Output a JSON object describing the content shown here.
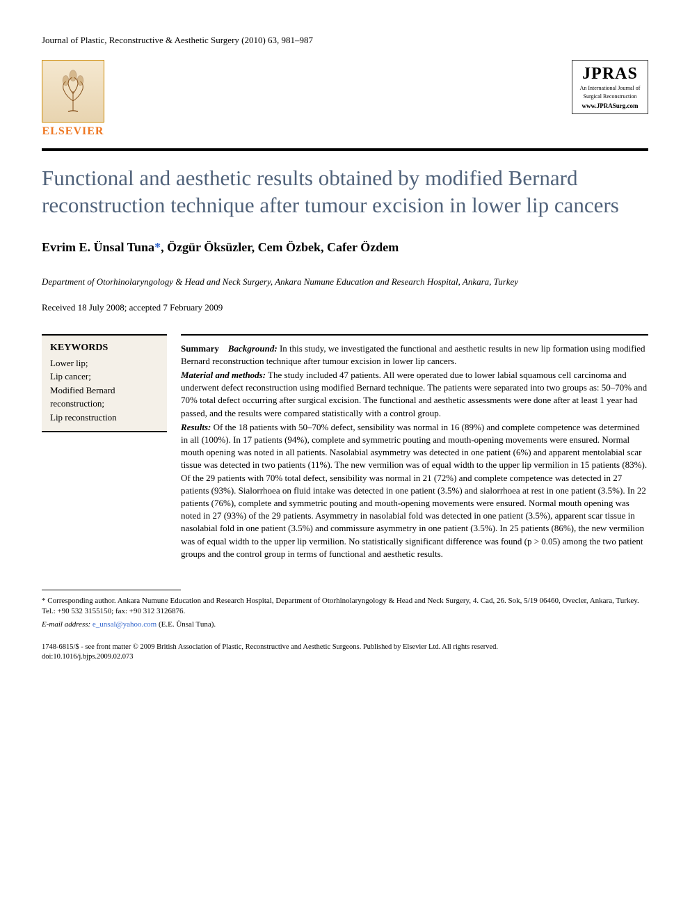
{
  "journal_header": "Journal of Plastic, Reconstructive & Aesthetic Surgery (2010) 63, 981–987",
  "publisher": {
    "name": "ELSEVIER",
    "tree_color": "#cc8800"
  },
  "journal_logo": {
    "acronym": "JPRAS",
    "subtitle_line1": "An International Journal of",
    "subtitle_line2": "Surgical Reconstruction",
    "url": "www.JPRASurg.com"
  },
  "title": "Functional and aesthetic results obtained by modified Bernard reconstruction technique after tumour excision in lower lip cancers",
  "authors": "Evrim E. Ünsal Tuna*, Özgür Öksüzler, Cem Özbek, Cafer Özdem",
  "affiliation": "Department of Otorhinolaryngology & Head and Neck Surgery, Ankara Numune Education and Research Hospital, Ankara, Turkey",
  "dates": "Received 18 July 2008; accepted 7 February 2009",
  "keywords": {
    "heading": "KEYWORDS",
    "items": "Lower lip;\nLip cancer;\nModified Bernard reconstruction;\nLip reconstruction"
  },
  "summary": {
    "label": "Summary",
    "background_label": "Background:",
    "background_text": " In this study, we investigated the functional and aesthetic results in new lip formation using modified Bernard reconstruction technique after tumour excision in lower lip cancers.",
    "methods_label": "Material and methods:",
    "methods_text": " The study included 47 patients. All were operated due to lower labial squamous cell carcinoma and underwent defect reconstruction using modified Bernard technique. The patients were separated into two groups as: 50–70% and 70% total defect occurring after surgical excision. The functional and aesthetic assessments were done after at least 1 year had passed, and the results were compared statistically with a control group.",
    "results_label": "Results:",
    "results_text": " Of the 18 patients with 50–70% defect, sensibility was normal in 16 (89%) and complete competence was determined in all (100%). In 17 patients (94%), complete and symmetric pouting and mouth-opening movements were ensured. Normal mouth opening was noted in all patients. Nasolabial asymmetry was detected in one patient (6%) and apparent mentolabial scar tissue was detected in two patients (11%). The new vermilion was of equal width to the upper lip vermilion in 15 patients (83%). Of the 29 patients with 70% total defect, sensibility was normal in 21 (72%) and complete competence was detected in 27 patients (93%). Sialorrhoea on fluid intake was detected in one patient (3.5%) and sialorrhoea at rest in one patient (3.5%). In 22 patients (76%), complete and symmetric pouting and mouth-opening movements were ensured. Normal mouth opening was noted in 27 (93%) of the 29 patients. Asymmetry in nasolabial fold was detected in one patient (3.5%), apparent scar tissue in nasolabial fold in one patient (3.5%) and commissure asymmetry in one patient (3.5%). In 25 patients (86%), the new vermilion was of equal width to the upper lip vermilion. No statistically significant difference was found (p > 0.05) among the two patient groups and the control group in terms of functional and aesthetic results."
  },
  "corresponding": {
    "text": "* Corresponding author. Ankara Numune Education and Research Hospital, Department of Otorhinolaryngology & Head and Neck Surgery, 4. Cad, 26. Sok, 5/19 06460, Ovecler, Ankara, Turkey. Tel.: +90 532 3155150; fax: +90 312 3126876.",
    "email_label": "E-mail address: ",
    "email": "e_unsal@yahoo.com",
    "email_suffix": " (E.E. Ünsal Tuna)."
  },
  "copyright": {
    "line1": "1748-6815/$ - see front matter © 2009 British Association of Plastic, Reconstructive and Aesthetic Surgeons. Published by Elsevier Ltd. All rights reserved.",
    "line2": "doi:10.1016/j.bjps.2009.02.073"
  },
  "colors": {
    "title_color": "#50627a",
    "link_color": "#3366cc",
    "elsevier_color": "#ee7722",
    "keywords_bg": "#f4f0e8"
  }
}
